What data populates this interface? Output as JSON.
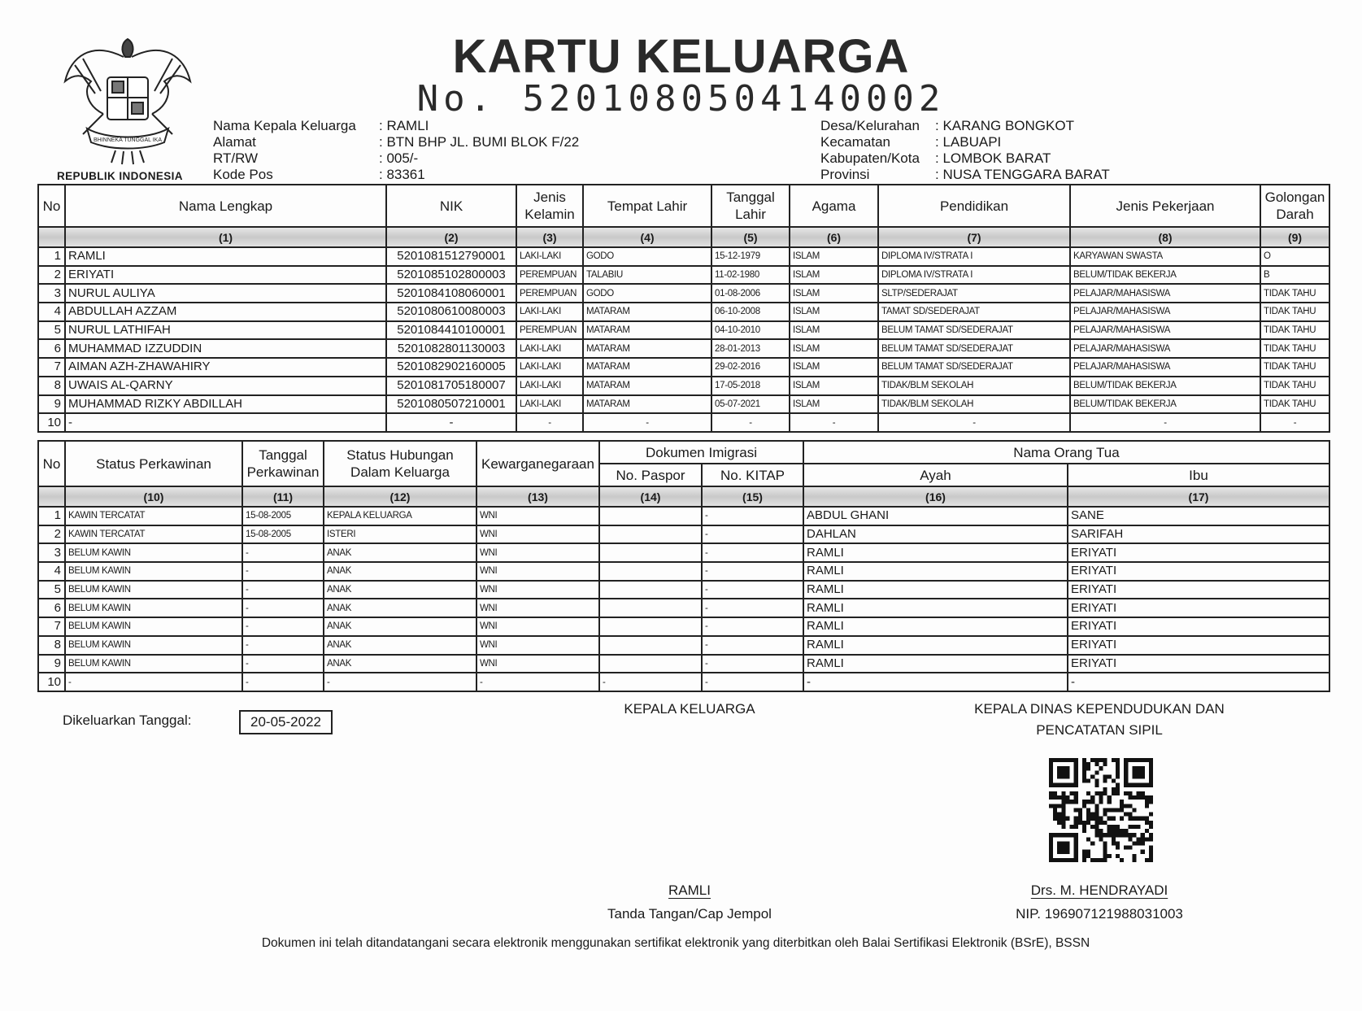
{
  "header": {
    "title": "KARTU KELUARGA",
    "number_label": "No.",
    "number": "5201080504140002",
    "emblem_caption": "REPUBLIK INDONESIA",
    "emblem_motto": "BHINNEKA TUNGGAL IKA"
  },
  "info_left": [
    {
      "label": "Nama Kepala Keluarga",
      "value": ": RAMLI"
    },
    {
      "label": "Alamat",
      "value": ": BTN BHP JL. BUMI BLOK F/22"
    },
    {
      "label": "RT/RW",
      "value": ": 005/-"
    },
    {
      "label": "Kode Pos",
      "value": ": 83361"
    }
  ],
  "info_right": [
    {
      "label": "Desa/Kelurahan",
      "value": ": KARANG BONGKOT"
    },
    {
      "label": "Kecamatan",
      "value": ": LABUAPI"
    },
    {
      "label": "Kabupaten/Kota",
      "value": ": LOMBOK BARAT"
    },
    {
      "label": "Provinsi",
      "value": ": NUSA TENGGARA BARAT"
    }
  ],
  "table1": {
    "headers": [
      "No",
      "Nama Lengkap",
      "NIK",
      "Jenis Kelamin",
      "Tempat Lahir",
      "Tanggal Lahir",
      "Agama",
      "Pendidikan",
      "Jenis Pekerjaan",
      "Golongan Darah"
    ],
    "col_numbers": [
      "",
      "(1)",
      "(2)",
      "(3)",
      "(4)",
      "(5)",
      "(6)",
      "(7)",
      "(8)",
      "(9)"
    ],
    "rows": [
      [
        "1",
        "RAMLI",
        "5201081512790001",
        "LAKI-LAKI",
        "GODO",
        "15-12-1979",
        "ISLAM",
        "DIPLOMA IV/STRATA I",
        "KARYAWAN SWASTA",
        "O"
      ],
      [
        "2",
        "ERIYATI",
        "5201085102800003",
        "PEREMPUAN",
        "TALABIU",
        "11-02-1980",
        "ISLAM",
        "DIPLOMA IV/STRATA I",
        "BELUM/TIDAK BEKERJA",
        "B"
      ],
      [
        "3",
        "NURUL AULIYA",
        "5201084108060001",
        "PEREMPUAN",
        "GODO",
        "01-08-2006",
        "ISLAM",
        "SLTP/SEDERAJAT",
        "PELAJAR/MAHASISWA",
        "TIDAK TAHU"
      ],
      [
        "4",
        "ABDULLAH AZZAM",
        "5201080610080003",
        "LAKI-LAKI",
        "MATARAM",
        "06-10-2008",
        "ISLAM",
        "TAMAT SD/SEDERAJAT",
        "PELAJAR/MAHASISWA",
        "TIDAK TAHU"
      ],
      [
        "5",
        "NURUL LATHIFAH",
        "5201084410100001",
        "PEREMPUAN",
        "MATARAM",
        "04-10-2010",
        "ISLAM",
        "BELUM TAMAT SD/SEDERAJAT",
        "PELAJAR/MAHASISWA",
        "TIDAK TAHU"
      ],
      [
        "6",
        "MUHAMMAD IZZUDDIN",
        "5201082801130003",
        "LAKI-LAKI",
        "MATARAM",
        "28-01-2013",
        "ISLAM",
        "BELUM TAMAT SD/SEDERAJAT",
        "PELAJAR/MAHASISWA",
        "TIDAK TAHU"
      ],
      [
        "7",
        "AIMAN AZH-ZHAWAHIRY",
        "5201082902160005",
        "LAKI-LAKI",
        "MATARAM",
        "29-02-2016",
        "ISLAM",
        "BELUM TAMAT SD/SEDERAJAT",
        "PELAJAR/MAHASISWA",
        "TIDAK TAHU"
      ],
      [
        "8",
        "UWAIS AL-QARNY",
        "5201081705180007",
        "LAKI-LAKI",
        "MATARAM",
        "17-05-2018",
        "ISLAM",
        "TIDAK/BLM SEKOLAH",
        "BELUM/TIDAK BEKERJA",
        "TIDAK TAHU"
      ],
      [
        "9",
        "MUHAMMAD RIZKY ABDILLAH",
        "5201080507210001",
        "LAKI-LAKI",
        "MATARAM",
        "05-07-2021",
        "ISLAM",
        "TIDAK/BLM SEKOLAH",
        "BELUM/TIDAK BEKERJA",
        "TIDAK TAHU"
      ],
      [
        "10",
        "-",
        "-",
        "-",
        "-",
        "-",
        "-",
        "-",
        "-",
        "-"
      ]
    ]
  },
  "table2": {
    "headers": {
      "no": "No",
      "status_perkawinan": "Status Perkawinan",
      "tanggal_perkawinan": "Tanggal Perkawinan",
      "status_hubungan": "Status Hubungan Dalam Keluarga",
      "kewarganegaraan": "Kewarganegaraan",
      "dokumen_imigrasi": "Dokumen Imigrasi",
      "no_paspor": "No. Paspor",
      "no_kitap": "No. KITAP",
      "nama_orang_tua": "Nama Orang Tua",
      "ayah": "Ayah",
      "ibu": "Ibu"
    },
    "col_numbers": [
      "",
      "(10)",
      "(11)",
      "(12)",
      "(13)",
      "(14)",
      "(15)",
      "(16)",
      "(17)"
    ],
    "rows": [
      [
        "1",
        "KAWIN TERCATAT",
        "15-08-2005",
        "KEPALA KELUARGA",
        "WNI",
        "",
        "-",
        "ABDUL GHANI",
        "SANE"
      ],
      [
        "2",
        "KAWIN TERCATAT",
        "15-08-2005",
        "ISTERI",
        "WNI",
        "",
        "-",
        "DAHLAN",
        "SARIFAH"
      ],
      [
        "3",
        "BELUM KAWIN",
        "-",
        "ANAK",
        "WNI",
        "",
        "-",
        "RAMLI",
        "ERIYATI"
      ],
      [
        "4",
        "BELUM KAWIN",
        "-",
        "ANAK",
        "WNI",
        "",
        "-",
        "RAMLI",
        "ERIYATI"
      ],
      [
        "5",
        "BELUM KAWIN",
        "-",
        "ANAK",
        "WNI",
        "",
        "-",
        "RAMLI",
        "ERIYATI"
      ],
      [
        "6",
        "BELUM KAWIN",
        "-",
        "ANAK",
        "WNI",
        "",
        "-",
        "RAMLI",
        "ERIYATI"
      ],
      [
        "7",
        "BELUM KAWIN",
        "-",
        "ANAK",
        "WNI",
        "",
        "-",
        "RAMLI",
        "ERIYATI"
      ],
      [
        "8",
        "BELUM KAWIN",
        "-",
        "ANAK",
        "WNI",
        "",
        "-",
        "RAMLI",
        "ERIYATI"
      ],
      [
        "9",
        "BELUM KAWIN",
        "-",
        "ANAK",
        "WNI",
        "",
        "-",
        "RAMLI",
        "ERIYATI"
      ],
      [
        "10",
        "-",
        "-",
        "-",
        "-",
        "-",
        "-",
        "-",
        "-"
      ]
    ]
  },
  "footer": {
    "issued_label": "Dikeluarkan Tanggal:",
    "issued_date": "20-05-2022",
    "head_title": "KEPALA KELUARGA",
    "head_name": "RAMLI",
    "head_caption": "Tanda Tangan/Cap Jempol",
    "official_title_1": "KEPALA DINAS KEPENDUDUKAN DAN",
    "official_title_2": "PENCATATAN SIPIL",
    "official_name": "Drs. M. HENDRAYADI",
    "official_nip": "NIP. 196907121988031003",
    "disclaimer": "Dokumen ini telah ditandatangani secara elektronik menggunakan sertifikat elektronik yang diterbitkan oleh Balai Sertifikasi Elektronik (BSrE), BSSN",
    "qr_icon": "qr-code-icon"
  }
}
